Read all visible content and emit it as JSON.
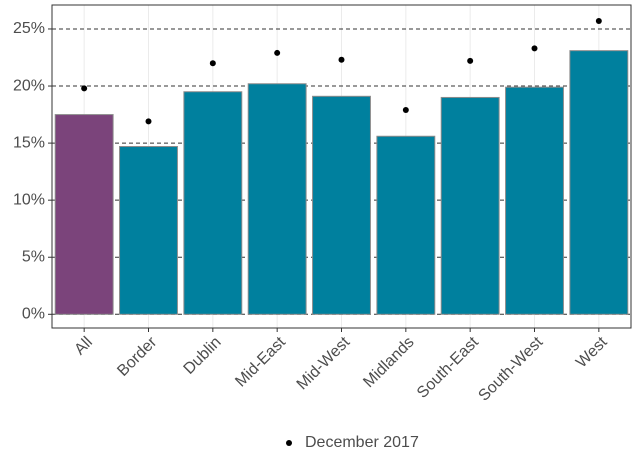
{
  "chart_data": {
    "type": "bar",
    "categories": [
      "All",
      "Border",
      "Dublin",
      "Mid-East",
      "Mid-West",
      "Midlands",
      "South-East",
      "South-West",
      "West"
    ],
    "values": [
      17.5,
      14.7,
      19.5,
      20.2,
      19.1,
      15.6,
      19.0,
      19.9,
      23.1
    ],
    "colors": [
      "#7b447b",
      "#00809e",
      "#00809e",
      "#00809e",
      "#00809e",
      "#00809e",
      "#00809e",
      "#00809e",
      "#00809e"
    ],
    "series": [
      {
        "name": "December 2017",
        "type": "point",
        "color": "#000000",
        "values": [
          19.8,
          16.9,
          22.0,
          22.9,
          22.3,
          17.9,
          22.2,
          23.3,
          25.7
        ]
      }
    ],
    "ylim": [
      -1.2,
      27.1
    ],
    "yticks": [
      {
        "value": 0,
        "label": "0%"
      },
      {
        "value": 5,
        "label": "5%"
      },
      {
        "value": 10,
        "label": "10%"
      },
      {
        "value": 15,
        "label": "15%"
      },
      {
        "value": 20,
        "label": "20%"
      },
      {
        "value": 25,
        "label": "25%"
      }
    ],
    "grid": true,
    "legend": "bottom"
  }
}
